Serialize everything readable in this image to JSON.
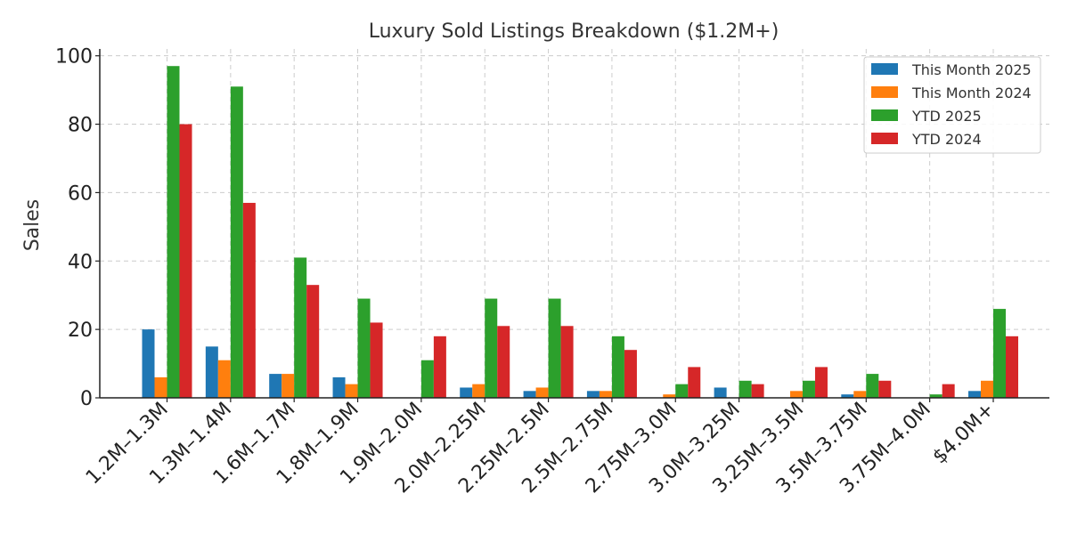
{
  "chart_data": {
    "type": "bar",
    "title": "Luxury Sold Listings Breakdown ($1.2M+)",
    "xlabel": "",
    "ylabel": "Sales",
    "ylim": [
      0,
      102
    ],
    "yticks": [
      0,
      20,
      40,
      60,
      80,
      100
    ],
    "grid": true,
    "legend_position": "top-right",
    "categories": [
      "1.2M–1.3M",
      "1.3M–1.4M",
      "1.6M–1.7M",
      "1.8M–1.9M",
      "1.9M–2.0M",
      "2.0M–2.25M",
      "2.25M–2.5M",
      "2.5M–2.75M",
      "2.75M–3.0M",
      "3.0M–3.25M",
      "3.25M–3.5M",
      "3.5M–3.75M",
      "3.75M–4.0M",
      "$4.0M+"
    ],
    "series": [
      {
        "name": "This Month 2025",
        "color": "#1f77b4",
        "values": [
          20,
          15,
          7,
          6,
          0,
          3,
          2,
          2,
          0,
          3,
          0,
          1,
          0,
          2
        ]
      },
      {
        "name": "This Month 2024",
        "color": "#ff7f0e",
        "values": [
          6,
          11,
          7,
          4,
          0,
          4,
          3,
          2,
          1,
          0,
          2,
          2,
          0,
          5
        ]
      },
      {
        "name": "YTD 2025",
        "color": "#2ca02c",
        "values": [
          97,
          91,
          41,
          29,
          11,
          29,
          29,
          18,
          4,
          5,
          5,
          7,
          1,
          26
        ]
      },
      {
        "name": "YTD 2024",
        "color": "#d62728",
        "values": [
          80,
          57,
          33,
          22,
          18,
          21,
          21,
          14,
          9,
          4,
          9,
          5,
          4,
          18
        ]
      }
    ]
  }
}
